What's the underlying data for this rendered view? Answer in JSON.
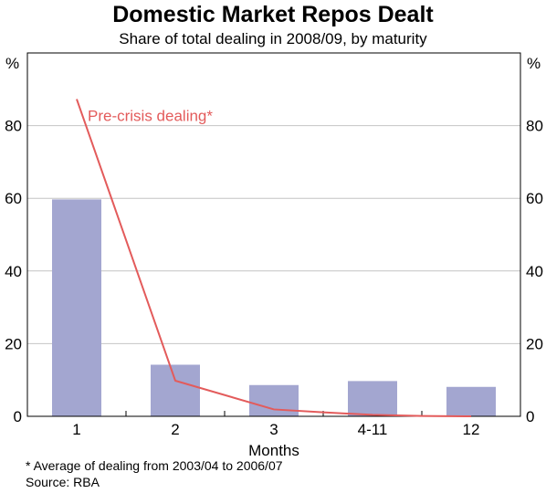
{
  "chart_data": {
    "type": "bar",
    "title": "Domestic Market Repos Dealt",
    "subtitle": "Share of total dealing in 2008/09, by maturity",
    "xlabel": "Months",
    "ylabel": "%",
    "ylim": [
      0,
      100
    ],
    "yticks": [
      0,
      20,
      40,
      60,
      80
    ],
    "grid": true,
    "categories": [
      "1",
      "2",
      "3",
      "4-11",
      "12"
    ],
    "series": [
      {
        "values": [
          59.7,
          14.2,
          8.6,
          9.7,
          8.1
        ],
        "color": "#a3a6d0"
      },
      {
        "name": "Pre-crisis dealing*",
        "type": "line",
        "color": "#e35b5b",
        "x": [
          1,
          2,
          3,
          3.5,
          4,
          4.5,
          5
        ],
        "values": [
          87.3,
          9.8,
          1.9,
          1.1,
          0.4,
          0.1,
          0.0
        ]
      }
    ],
    "annotations": [
      "Pre-crisis dealing*"
    ]
  },
  "footnotes": {
    "note": "* Average of dealing from 2003/04 to 2006/07",
    "source": "Source: RBA"
  }
}
